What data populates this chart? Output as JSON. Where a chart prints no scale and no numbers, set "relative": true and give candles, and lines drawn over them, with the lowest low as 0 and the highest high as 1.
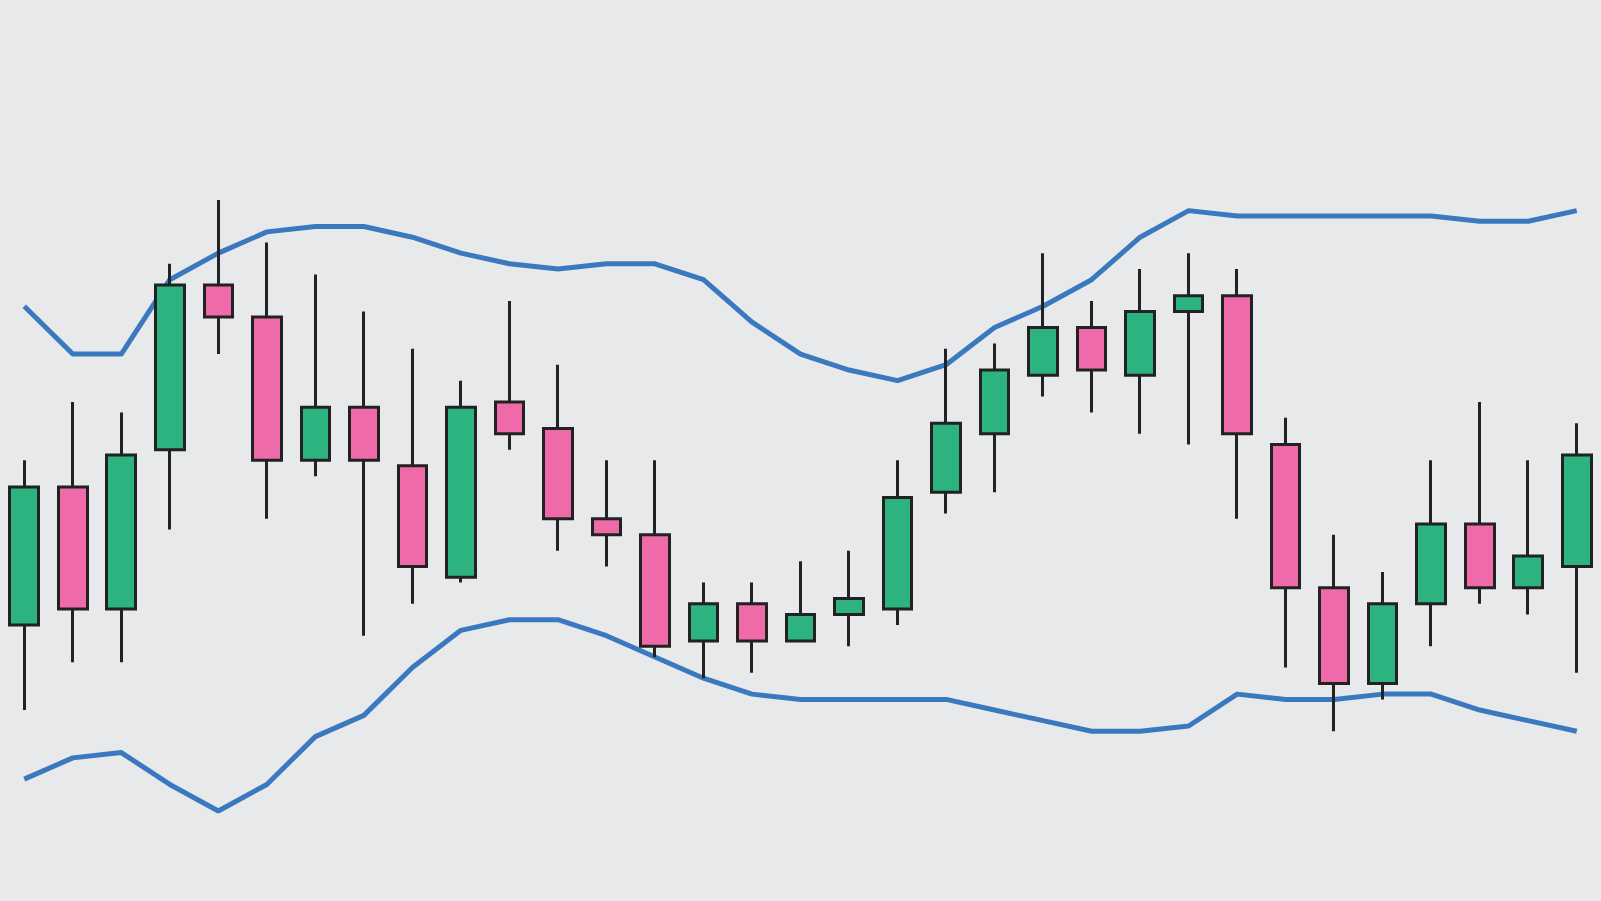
{
  "chart_data": {
    "type": "candlestick",
    "relative": true,
    "marker": "none",
    "categories": [
      null,
      null,
      null,
      null,
      null,
      null,
      null,
      null,
      null,
      null,
      null,
      null,
      null,
      null,
      null,
      null,
      null,
      null,
      null,
      null,
      null,
      null,
      null,
      null,
      null,
      null,
      null,
      null,
      null,
      null,
      null,
      null,
      null
    ],
    "ohlc": [
      [
        0.2,
        0.51,
        0.04,
        0.46
      ],
      [
        0.46,
        0.62,
        0.13,
        0.23
      ],
      [
        0.23,
        0.6,
        0.13,
        0.52
      ],
      [
        0.53,
        0.88,
        0.38,
        0.84
      ],
      [
        0.84,
        1.0,
        0.71,
        0.78
      ],
      [
        0.78,
        0.92,
        0.4,
        0.51
      ],
      [
        0.51,
        0.86,
        0.48,
        0.61
      ],
      [
        0.61,
        0.79,
        0.18,
        0.51
      ],
      [
        0.5,
        0.72,
        0.24,
        0.31
      ],
      [
        0.29,
        0.66,
        0.28,
        0.61
      ],
      [
        0.62,
        0.81,
        0.53,
        0.56
      ],
      [
        0.57,
        0.69,
        0.34,
        0.4
      ],
      [
        0.4,
        0.51,
        0.31,
        0.37
      ],
      [
        0.37,
        0.51,
        0.14,
        0.16
      ],
      [
        0.17,
        0.28,
        0.1,
        0.24
      ],
      [
        0.24,
        0.28,
        0.11,
        0.17
      ],
      [
        0.17,
        0.32,
        0.17,
        0.22
      ],
      [
        0.22,
        0.34,
        0.16,
        0.25
      ],
      [
        0.23,
        0.51,
        0.2,
        0.44
      ],
      [
        0.45,
        0.72,
        0.41,
        0.58
      ],
      [
        0.56,
        0.73,
        0.45,
        0.68
      ],
      [
        0.67,
        0.9,
        0.63,
        0.76
      ],
      [
        0.76,
        0.81,
        0.6,
        0.68
      ],
      [
        0.67,
        0.87,
        0.56,
        0.79
      ],
      [
        0.79,
        0.9,
        0.54,
        0.82
      ],
      [
        0.82,
        0.87,
        0.4,
        0.56
      ],
      [
        0.54,
        0.59,
        0.12,
        0.27
      ],
      [
        0.27,
        0.37,
        0.0,
        0.09
      ],
      [
        0.09,
        0.3,
        0.06,
        0.24
      ],
      [
        0.24,
        0.51,
        0.16,
        0.39
      ],
      [
        0.39,
        0.62,
        0.24,
        0.27
      ],
      [
        0.27,
        0.51,
        0.22,
        0.33
      ],
      [
        0.31,
        0.58,
        0.11,
        0.52
      ]
    ],
    "colors": [
      "#2db37f",
      "#ef6aa8",
      "#2db37f",
      "#2db37f",
      "#ef6aa8",
      "#ef6aa8",
      "#2db37f",
      "#ef6aa8",
      "#ef6aa8",
      "#2db37f",
      "#ef6aa8",
      "#ef6aa8",
      "#ef6aa8",
      "#ef6aa8",
      "#2db37f",
      "#ef6aa8",
      "#2db37f",
      "#2db37f",
      "#2db37f",
      "#2db37f",
      "#2db37f",
      "#2db37f",
      "#ef6aa8",
      "#2db37f",
      "#2db37f",
      "#ef6aa8",
      "#ef6aa8",
      "#ef6aa8",
      "#2db37f",
      "#2db37f",
      "#ef6aa8",
      "#2db37f",
      "#2db37f"
    ],
    "series": [
      {
        "type": "line",
        "color": "#3a78c0",
        "values": [
          0.8,
          0.71,
          0.71,
          0.85,
          0.9,
          0.94,
          0.95,
          0.95,
          0.93,
          0.9,
          0.88,
          0.87,
          0.88,
          0.88,
          0.85,
          0.77,
          0.71,
          0.68,
          0.66,
          0.69,
          0.76,
          0.8,
          0.85,
          0.93,
          0.98,
          0.97,
          0.97,
          0.97,
          0.97,
          0.97,
          0.96,
          0.96,
          0.98
        ]
      },
      {
        "type": "line",
        "color": "#3a78c0",
        "values": [
          -0.09,
          -0.05,
          -0.04,
          -0.1,
          -0.15,
          -0.1,
          -0.01,
          0.03,
          0.12,
          0.19,
          0.21,
          0.21,
          0.18,
          0.14,
          0.1,
          0.07,
          0.06,
          0.06,
          0.06,
          0.06,
          0.04,
          0.02,
          0.0,
          0.0,
          0.01,
          0.07,
          0.06,
          0.06,
          0.07,
          0.07,
          0.04,
          0.02,
          0.0
        ]
      }
    ]
  }
}
